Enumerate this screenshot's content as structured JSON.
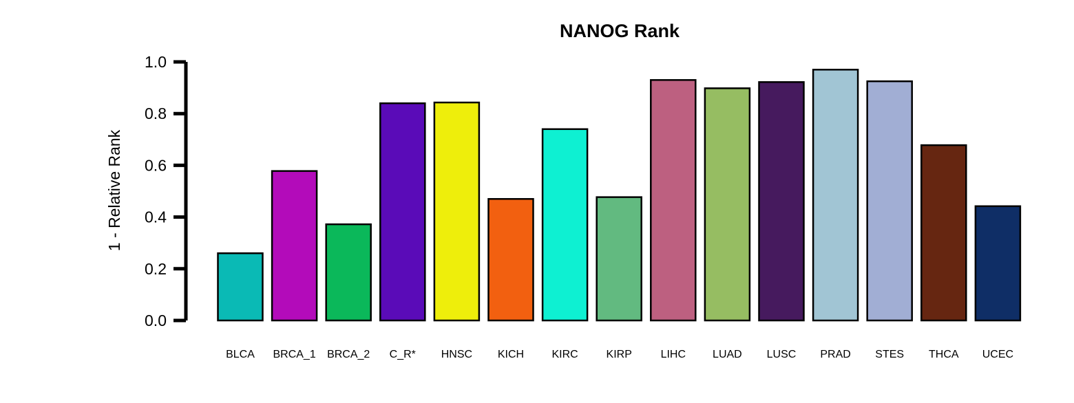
{
  "chart_data": {
    "type": "bar",
    "title": "NANOG Rank",
    "ylabel": "1 - Relative Rank",
    "xlabel": "",
    "ylim": [
      0,
      1
    ],
    "yticks": [
      "0.0",
      "0.2",
      "0.4",
      "0.6",
      "0.8",
      "1.0"
    ],
    "grid": false,
    "legend": "none",
    "categories": [
      "BLCA",
      "BRCA_1",
      "BRCA_2",
      "C_R*",
      "HNSC",
      "KICH",
      "KIRC",
      "KIRP",
      "LIHC",
      "LUAD",
      "LUSC",
      "PRAD",
      "STES",
      "THCA",
      "UCEC"
    ],
    "values": [
      0.26,
      0.578,
      0.372,
      0.84,
      0.843,
      0.47,
      0.74,
      0.477,
      0.93,
      0.898,
      0.922,
      0.97,
      0.925,
      0.678,
      0.442
    ],
    "colors": [
      "#0ABAB5",
      "#B30BBA",
      "#0BB85A",
      "#5A0BB8",
      "#EEEE0B",
      "#F26010",
      "#0EF0D2",
      "#62BA80",
      "#BD6080",
      "#96BD62",
      "#461A5E",
      "#A1C5D4",
      "#A1AED4",
      "#662611",
      "#0F2E66"
    ]
  }
}
